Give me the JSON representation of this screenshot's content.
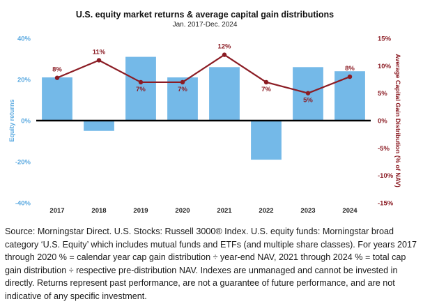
{
  "chart_data": {
    "type": "bar+line",
    "title": "U.S. equity market returns & average capital gain distributions",
    "subtitle": "Jan. 2017-Dec. 2024",
    "categories": [
      "2017",
      "2018",
      "2019",
      "2020",
      "2021",
      "2022",
      "2023",
      "2024"
    ],
    "left_axis": {
      "label": "Equity returns",
      "ylim": [
        -40,
        40
      ],
      "ticks": [
        40,
        20,
        0,
        -20,
        -40
      ],
      "tick_labels": [
        "40%",
        "20%",
        "0%",
        "-20%",
        "-40%"
      ],
      "color": "#5aa9e0"
    },
    "right_axis": {
      "label": "Average Capital Gain Distribution (% of NAV)",
      "ylim": [
        -15,
        15
      ],
      "ticks": [
        15,
        10,
        5,
        0,
        -5,
        -10,
        -15
      ],
      "tick_labels": [
        "15%",
        "10%",
        "5%",
        "0%",
        "-5%",
        "-10%",
        "-15%"
      ],
      "color": "#8b1c24"
    },
    "series": [
      {
        "type": "bar",
        "axis": "left",
        "color": "#74b9e8",
        "values": [
          21,
          -5,
          31,
          21,
          26,
          -19,
          26,
          24
        ]
      },
      {
        "type": "line",
        "axis": "right",
        "color": "#8b1c24",
        "values": [
          7.8,
          11,
          7,
          7,
          12,
          7,
          5,
          8
        ],
        "labels": [
          "8%",
          "11%",
          "7%",
          "7%",
          "12%",
          "7%",
          "5%",
          "8%"
        ]
      }
    ],
    "grid": false,
    "legend": "none"
  },
  "footnote": "Source: Morningstar Direct. U.S. Stocks: Russell 3000® Index. U.S. equity funds: Morningstar broad category ‘U.S. Equity’ which includes mutual funds and ETFs (and multiple share classes). For years 2017 through 2020 % = calendar year cap gain distribution ÷ year-end NAV, 2021 through 2024 % = total cap gain distribution ÷ respective pre-distribution NAV. Indexes are unmanaged and cannot be invested in directly. Returns represent past performance, are not a guarantee of future performance, and are not indicative of any specific investment."
}
